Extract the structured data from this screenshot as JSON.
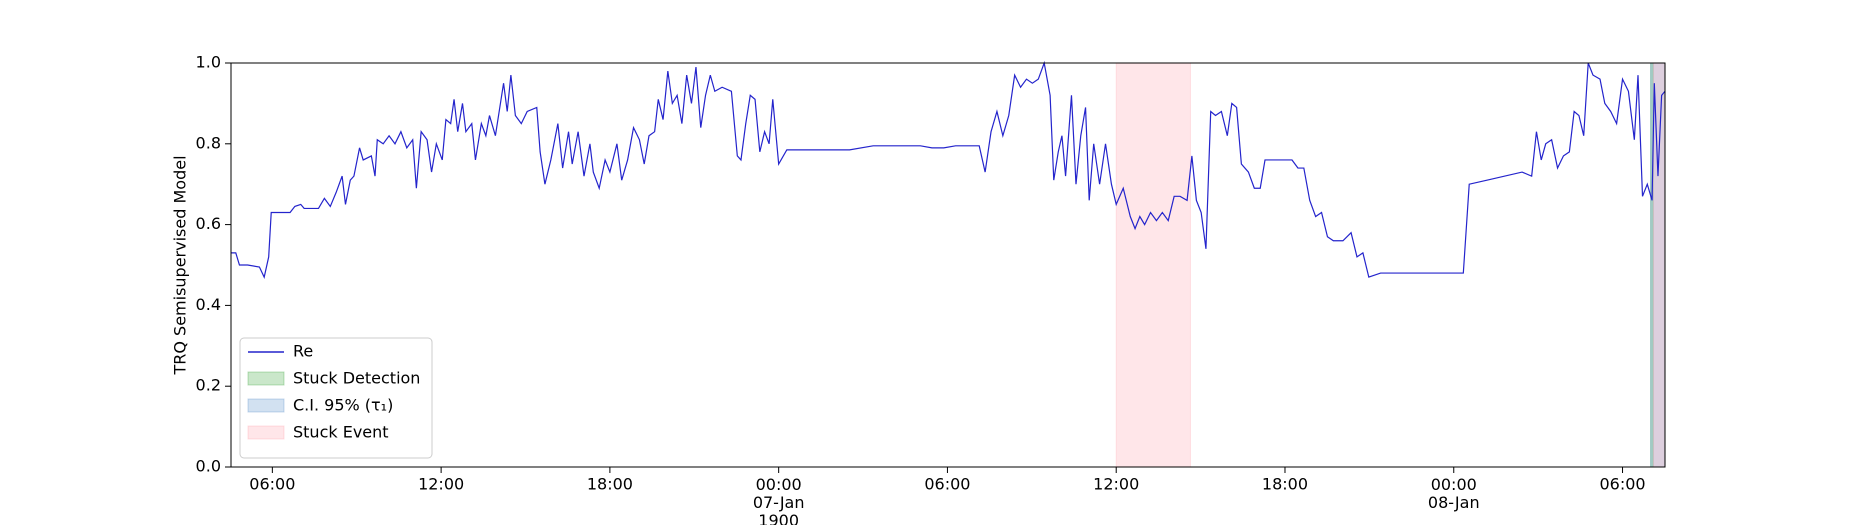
{
  "chart_data": {
    "type": "line",
    "ylabel": "TRQ Semisupervised Model",
    "x": [
      4.53,
      4.7,
      4.83,
      5.12,
      5.54,
      5.71,
      5.87,
      5.96,
      6.38,
      6.63,
      6.8,
      7.01,
      7.13,
      7.64,
      7.85,
      8.06,
      8.27,
      8.48,
      8.6,
      8.77,
      8.9,
      9.1,
      9.23,
      9.52,
      9.65,
      9.73,
      9.94,
      10.15,
      10.36,
      10.57,
      10.78,
      10.99,
      11.12,
      11.29,
      11.5,
      11.66,
      11.83,
      12.04,
      12.17,
      12.34,
      12.46,
      12.59,
      12.76,
      12.88,
      13.09,
      13.22,
      13.43,
      13.59,
      13.72,
      13.93,
      14.22,
      14.35,
      14.48,
      14.64,
      14.85,
      15.06,
      15.4,
      15.52,
      15.69,
      15.9,
      16.15,
      16.32,
      16.53,
      16.66,
      16.87,
      17.08,
      17.29,
      17.41,
      17.62,
      17.83,
      18.0,
      18.25,
      18.42,
      18.63,
      18.84,
      19.05,
      19.22,
      19.39,
      19.59,
      19.72,
      19.89,
      20.06,
      20.22,
      20.39,
      20.56,
      20.73,
      20.9,
      21.06,
      21.23,
      21.4,
      21.57,
      21.73,
      21.99,
      22.32,
      22.53,
      22.66,
      22.83,
      22.99,
      23.16,
      23.33,
      23.5,
      23.66,
      23.79,
      24.0,
      24.29,
      25.68,
      26.52,
      27.36,
      29.04,
      29.45,
      29.87,
      30.29,
      31.13,
      31.34,
      31.55,
      31.76,
      31.97,
      32.18,
      32.39,
      32.6,
      32.81,
      33.02,
      33.23,
      33.44,
      33.65,
      33.78,
      33.94,
      34.07,
      34.2,
      34.41,
      34.57,
      34.74,
      34.91,
      35.04,
      35.2,
      35.41,
      35.62,
      35.83,
      36.0,
      36.25,
      36.5,
      36.67,
      36.84,
      37.01,
      37.22,
      37.43,
      37.64,
      37.85,
      38.06,
      38.27,
      38.52,
      38.69,
      38.85,
      39.02,
      39.19,
      39.36,
      39.53,
      39.74,
      39.95,
      40.11,
      40.28,
      40.45,
      40.7,
      40.91,
      41.12,
      41.29,
      41.83,
      42.25,
      42.46,
      42.67,
      42.88,
      43.09,
      43.3,
      43.51,
      43.72,
      44.06,
      44.35,
      44.56,
      44.77,
      44.98,
      45.4,
      48.34,
      48.55,
      49.18,
      50.43,
      50.77,
      50.94,
      51.11,
      51.27,
      51.48,
      51.69,
      51.9,
      52.11,
      52.28,
      52.45,
      52.62,
      52.78,
      52.95,
      53.2,
      53.37,
      53.58,
      53.79,
      54.0,
      54.21,
      54.42,
      54.55,
      54.71,
      54.88,
      55.05,
      55.13,
      55.26,
      55.39,
      55.51
    ],
    "series": [
      {
        "name": "Re",
        "color": "#2424cc",
        "values": [
          0.53,
          0.53,
          0.5,
          0.5,
          0.495,
          0.47,
          0.52,
          0.63,
          0.63,
          0.63,
          0.645,
          0.65,
          0.64,
          0.64,
          0.665,
          0.645,
          0.68,
          0.72,
          0.65,
          0.71,
          0.72,
          0.79,
          0.76,
          0.77,
          0.72,
          0.81,
          0.8,
          0.82,
          0.8,
          0.83,
          0.79,
          0.81,
          0.69,
          0.83,
          0.81,
          0.73,
          0.8,
          0.76,
          0.86,
          0.85,
          0.91,
          0.83,
          0.9,
          0.83,
          0.85,
          0.76,
          0.85,
          0.82,
          0.87,
          0.82,
          0.95,
          0.88,
          0.97,
          0.87,
          0.85,
          0.88,
          0.89,
          0.78,
          0.7,
          0.76,
          0.85,
          0.74,
          0.83,
          0.75,
          0.83,
          0.72,
          0.8,
          0.73,
          0.69,
          0.76,
          0.73,
          0.8,
          0.71,
          0.76,
          0.84,
          0.81,
          0.75,
          0.82,
          0.83,
          0.91,
          0.86,
          0.98,
          0.9,
          0.92,
          0.85,
          0.97,
          0.9,
          0.99,
          0.84,
          0.92,
          0.97,
          0.93,
          0.94,
          0.93,
          0.77,
          0.76,
          0.85,
          0.92,
          0.91,
          0.78,
          0.83,
          0.8,
          0.91,
          0.75,
          0.785,
          0.785,
          0.785,
          0.795,
          0.795,
          0.79,
          0.79,
          0.795,
          0.795,
          0.73,
          0.83,
          0.88,
          0.82,
          0.87,
          0.97,
          0.94,
          0.96,
          0.95,
          0.96,
          1.0,
          0.92,
          0.71,
          0.78,
          0.82,
          0.72,
          0.92,
          0.7,
          0.82,
          0.89,
          0.66,
          0.8,
          0.7,
          0.8,
          0.7,
          0.65,
          0.69,
          0.62,
          0.59,
          0.62,
          0.6,
          0.63,
          0.61,
          0.63,
          0.61,
          0.67,
          0.67,
          0.66,
          0.77,
          0.66,
          0.63,
          0.54,
          0.88,
          0.87,
          0.88,
          0.82,
          0.9,
          0.89,
          0.75,
          0.73,
          0.69,
          0.69,
          0.76,
          0.76,
          0.76,
          0.74,
          0.74,
          0.66,
          0.62,
          0.63,
          0.57,
          0.56,
          0.56,
          0.58,
          0.52,
          0.53,
          0.47,
          0.48,
          0.48,
          0.7,
          0.71,
          0.73,
          0.72,
          0.83,
          0.76,
          0.8,
          0.81,
          0.74,
          0.77,
          0.78,
          0.88,
          0.87,
          0.82,
          1.0,
          0.97,
          0.96,
          0.9,
          0.88,
          0.85,
          0.96,
          0.93,
          0.81,
          0.97,
          0.67,
          0.7,
          0.66,
          0.95,
          0.72,
          0.92,
          0.93
        ]
      }
    ],
    "spans": [
      {
        "name": "Stuck Detection",
        "color": "#2ca02c",
        "ranges": [
          [
            55.0,
            55.09
          ]
        ]
      },
      {
        "name": "C.I. 95% (τ₁)",
        "color": "#4a86c8",
        "ranges": [
          [
            55.0,
            55.51
          ]
        ]
      },
      {
        "name": "Stuck Event",
        "color": "#ff9aa6",
        "ranges": [
          [
            36.0,
            38.64
          ],
          [
            55.1,
            55.51
          ]
        ]
      }
    ],
    "xlim": [
      4.53,
      55.51
    ],
    "xticks": [
      {
        "value": 6,
        "label": "06:00"
      },
      {
        "value": 12,
        "label": "12:00"
      },
      {
        "value": 18,
        "label": "18:00"
      },
      {
        "value": 24,
        "label": "00:00\n07-Jan\n1900"
      },
      {
        "value": 30,
        "label": "06:00"
      },
      {
        "value": 36,
        "label": "12:00"
      },
      {
        "value": 42,
        "label": "18:00"
      },
      {
        "value": 48,
        "label": "00:00\n08-Jan"
      },
      {
        "value": 54,
        "label": "06:00"
      }
    ],
    "ylim": [
      0.0,
      1.0
    ],
    "yticks": [
      {
        "value": 0,
        "label": "0.0"
      },
      {
        "value": 0.2,
        "label": "0.2"
      },
      {
        "value": 0.4,
        "label": "0.4"
      },
      {
        "value": 0.6,
        "label": "0.6"
      },
      {
        "value": 0.8,
        "label": "0.8"
      },
      {
        "value": 1,
        "label": "1.0"
      }
    ],
    "legend": "lower left"
  }
}
